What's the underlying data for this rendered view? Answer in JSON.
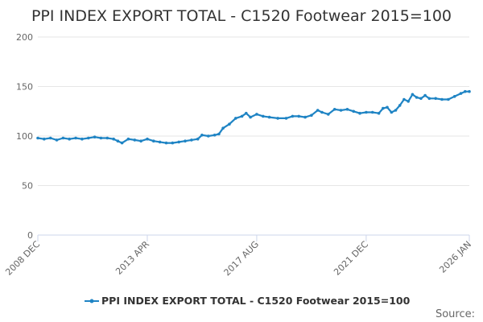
{
  "chart_data": {
    "type": "line",
    "title": "PPI INDEX EXPORT TOTAL - C1520 Footwear 2015=100",
    "xlabel": "",
    "ylabel": "",
    "ylim": [
      0,
      200
    ],
    "yticks": [
      "0",
      "50",
      "100",
      "150",
      "200"
    ],
    "xticks": [
      "2008 DEC",
      "2013 APR",
      "2017 AUG",
      "2021 DEC",
      "2026 JAN"
    ],
    "grid": true,
    "legend_position": "bottom",
    "color": "#1f84c4",
    "series": [
      {
        "name": "PPI INDEX EXPORT TOTAL - C1520 Footwear 2015=100",
        "points": [
          [
            "2008-12",
            98
          ],
          [
            "2009-03",
            97
          ],
          [
            "2009-06",
            98
          ],
          [
            "2009-09",
            96
          ],
          [
            "2009-12",
            98
          ],
          [
            "2010-03",
            97
          ],
          [
            "2010-06",
            98
          ],
          [
            "2010-09",
            97
          ],
          [
            "2010-12",
            98
          ],
          [
            "2011-03",
            99
          ],
          [
            "2011-06",
            98
          ],
          [
            "2011-09",
            98
          ],
          [
            "2011-12",
            97
          ],
          [
            "2012-02",
            95
          ],
          [
            "2012-04",
            93
          ],
          [
            "2012-07",
            97
          ],
          [
            "2012-10",
            96
          ],
          [
            "2013-01",
            95
          ],
          [
            "2013-04",
            97
          ],
          [
            "2013-07",
            95
          ],
          [
            "2013-10",
            94
          ],
          [
            "2014-01",
            93
          ],
          [
            "2014-04",
            93
          ],
          [
            "2014-07",
            94
          ],
          [
            "2014-10",
            95
          ],
          [
            "2015-01",
            96
          ],
          [
            "2015-04",
            97
          ],
          [
            "2015-06",
            101
          ],
          [
            "2015-09",
            100
          ],
          [
            "2015-12",
            101
          ],
          [
            "2016-02",
            102
          ],
          [
            "2016-04",
            108
          ],
          [
            "2016-07",
            112
          ],
          [
            "2016-10",
            118
          ],
          [
            "2017-01",
            120
          ],
          [
            "2017-03",
            123
          ],
          [
            "2017-05",
            119
          ],
          [
            "2017-08",
            122
          ],
          [
            "2017-11",
            120
          ],
          [
            "2018-02",
            119
          ],
          [
            "2018-06",
            118
          ],
          [
            "2018-10",
            118
          ],
          [
            "2019-01",
            120
          ],
          [
            "2019-04",
            120
          ],
          [
            "2019-07",
            119
          ],
          [
            "2019-10",
            121
          ],
          [
            "2020-01",
            126
          ],
          [
            "2020-03",
            124
          ],
          [
            "2020-06",
            122
          ],
          [
            "2020-09",
            127
          ],
          [
            "2020-12",
            126
          ],
          [
            "2021-03",
            127
          ],
          [
            "2021-06",
            125
          ],
          [
            "2021-09",
            123
          ],
          [
            "2021-12",
            124
          ],
          [
            "2022-03",
            124
          ],
          [
            "2022-06",
            123
          ],
          [
            "2022-08",
            128
          ],
          [
            "2022-10",
            129
          ],
          [
            "2022-12",
            124
          ],
          [
            "2023-02",
            126
          ],
          [
            "2023-04",
            131
          ],
          [
            "2023-06",
            137
          ],
          [
            "2023-08",
            135
          ],
          [
            "2023-10",
            142
          ],
          [
            "2023-12",
            139
          ],
          [
            "2024-02",
            138
          ],
          [
            "2024-04",
            141
          ],
          [
            "2024-06",
            138
          ],
          [
            "2024-09",
            138
          ],
          [
            "2024-12",
            137
          ],
          [
            "2025-03",
            137
          ],
          [
            "2025-06",
            140
          ],
          [
            "2025-09",
            143
          ],
          [
            "2025-11",
            145
          ],
          [
            "2026-01",
            145
          ]
        ]
      }
    ]
  },
  "legend": {
    "label": "PPI INDEX EXPORT TOTAL - C1520 Footwear 2015=100"
  },
  "source": {
    "label": "Source:"
  }
}
